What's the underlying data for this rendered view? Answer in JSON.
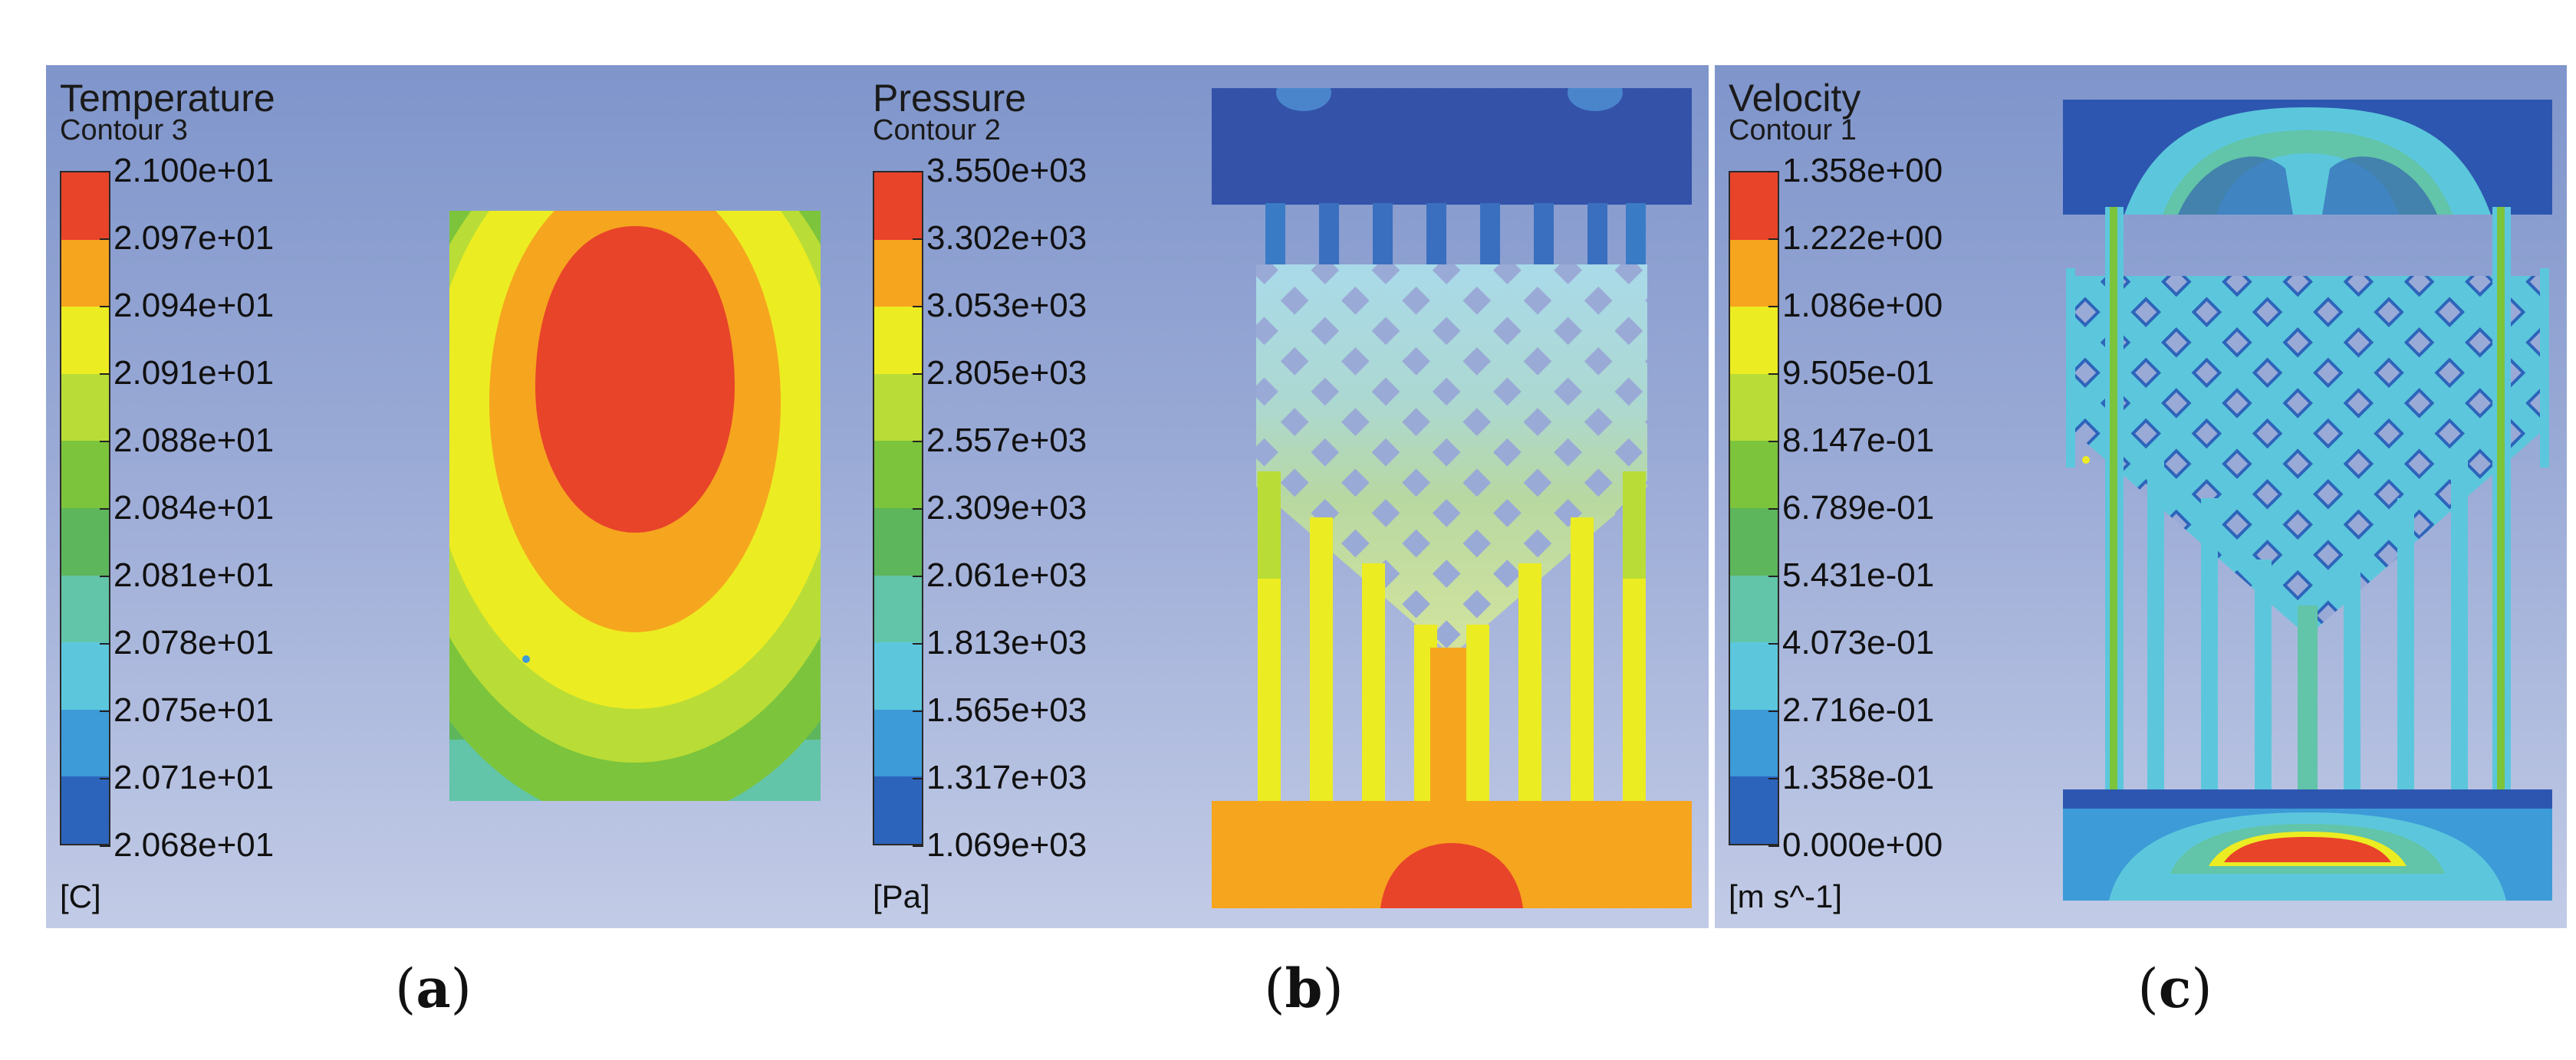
{
  "panels": [
    {
      "id": "a",
      "title": "Temperature",
      "subtitle": "Contour 3",
      "unit": "[C]",
      "caption_letter": "a",
      "ticks": [
        "2.100e+01",
        "2.097e+01",
        "2.094e+01",
        "2.091e+01",
        "2.088e+01",
        "2.084e+01",
        "2.081e+01",
        "2.078e+01",
        "2.075e+01",
        "2.071e+01",
        "2.068e+01"
      ]
    },
    {
      "id": "b",
      "title": "Pressure",
      "subtitle": "Contour 2",
      "unit": "[Pa]",
      "caption_letter": "b",
      "ticks": [
        "3.550e+03",
        "3.302e+03",
        "3.053e+03",
        "2.805e+03",
        "2.557e+03",
        "2.309e+03",
        "2.061e+03",
        "1.813e+03",
        "1.565e+03",
        "1.317e+03",
        "1.069e+03"
      ]
    },
    {
      "id": "c",
      "title": "Velocity",
      "subtitle": "Contour 1",
      "unit": "[m s^-1]",
      "caption_letter": "c",
      "ticks": [
        "1.358e+00",
        "1.222e+00",
        "1.086e+00",
        "9.505e-01",
        "8.147e-01",
        "6.789e-01",
        "5.431e-01",
        "4.073e-01",
        "2.716e-01",
        "1.358e-01",
        "0.000e+00"
      ]
    }
  ],
  "colormap": [
    "#e8442a",
    "#f6a51e",
    "#ecec22",
    "#b9dd36",
    "#7cc43c",
    "#5db65c",
    "#62c4a8",
    "#5cc7dc",
    "#3d9bd8",
    "#2d64bb"
  ]
}
